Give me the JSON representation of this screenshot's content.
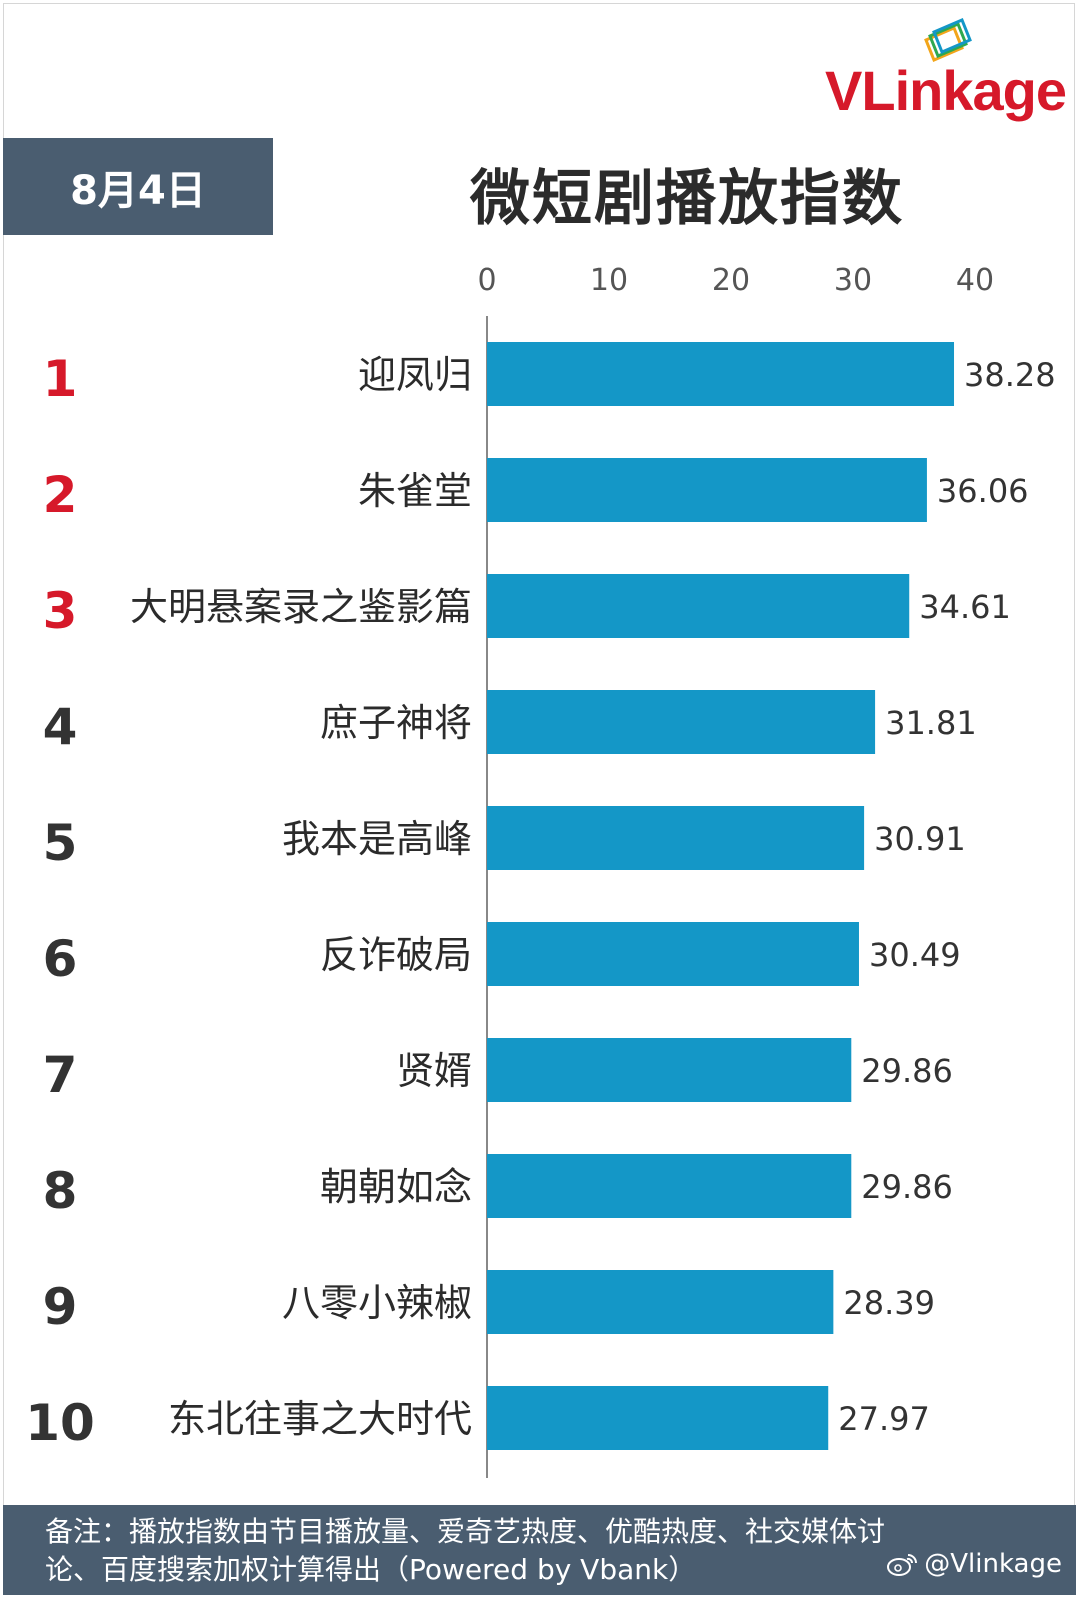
{
  "brand": {
    "logo_text": "VLinkage"
  },
  "date_label": "8月4日",
  "chart_data": {
    "type": "bar",
    "orientation": "horizontal",
    "title": "微短剧播放指数",
    "xlim": [
      0,
      40
    ],
    "ticks": [
      0,
      10,
      20,
      30,
      40
    ],
    "grid": false,
    "bar_color": "#1497c7",
    "rank_top_color": "#d6192a",
    "rank_color": "#333333",
    "ranks": [
      "1",
      "2",
      "3",
      "4",
      "5",
      "6",
      "7",
      "8",
      "9",
      "10"
    ],
    "categories": [
      "迎凤归",
      "朱雀堂",
      "大明悬案录之鉴影篇",
      "庶子神将",
      "我本是高峰",
      "反诈破局",
      "贤婿",
      "朝朝如念",
      "八零小辣椒",
      "东北往事之大时代"
    ],
    "values": [
      38.28,
      36.06,
      34.61,
      31.81,
      30.91,
      30.49,
      29.86,
      29.86,
      28.39,
      27.97
    ],
    "value_labels": [
      "38.28",
      "36.06",
      "34.61",
      "31.81",
      "30.91",
      "30.49",
      "29.86",
      "29.86",
      "28.39",
      "27.97"
    ]
  },
  "footer": {
    "line1": "备注：播放指数由节目播放量、爱奇艺热度、优酷热度、社交媒体讨",
    "line2": "论、百度搜索加权计算得出（Powered by Vbank）",
    "handle": "@Vlinkage"
  }
}
